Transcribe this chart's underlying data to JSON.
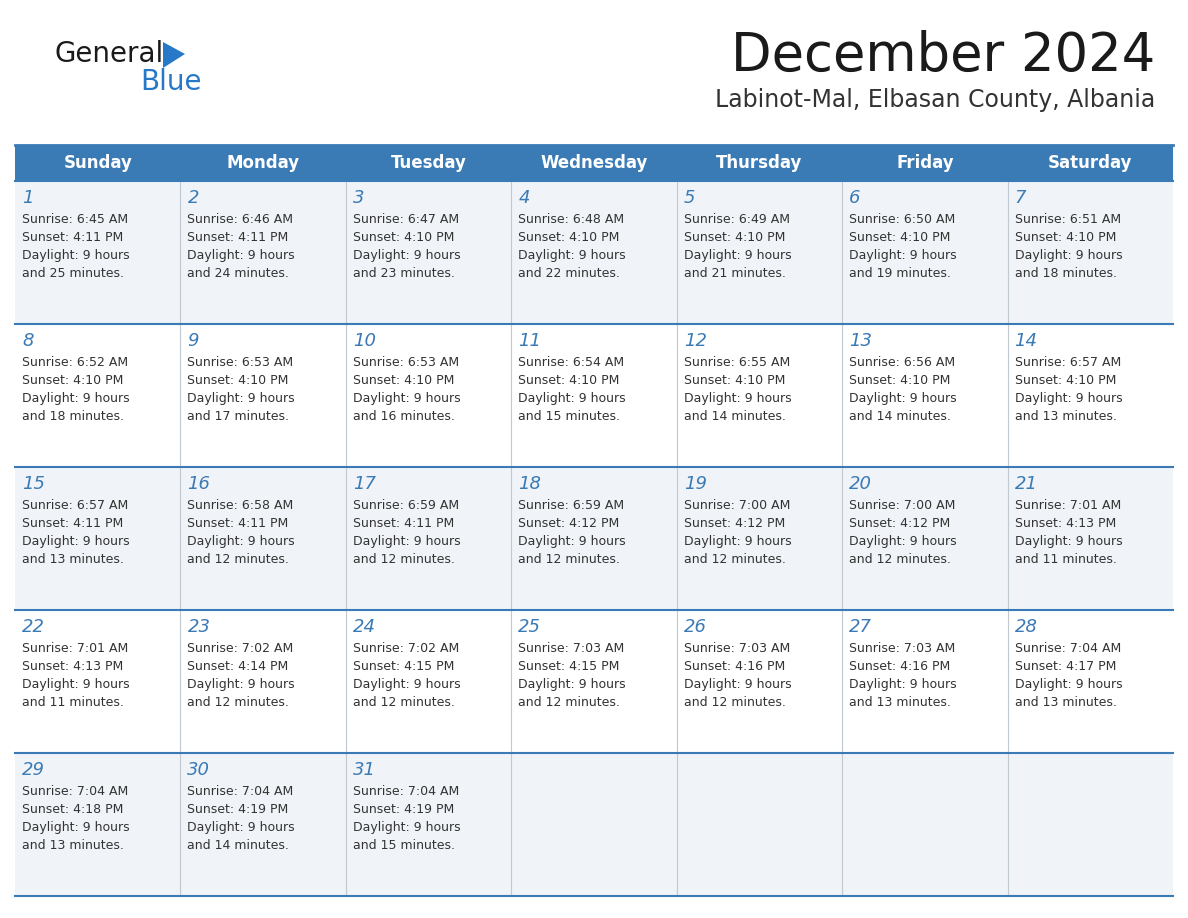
{
  "title": "December 2024",
  "subtitle": "Labinot-Mal, Elbasan County, Albania",
  "header_bg_color": "#3a7ab5",
  "header_text_color": "#ffffff",
  "day_names": [
    "Sunday",
    "Monday",
    "Tuesday",
    "Wednesday",
    "Thursday",
    "Friday",
    "Saturday"
  ],
  "title_color": "#1a1a1a",
  "subtitle_color": "#333333",
  "cell_bg_row0": "#f0f4f8",
  "cell_bg_row1": "#ffffff",
  "day_num_color": "#3a7ab5",
  "text_color": "#333333",
  "border_color": "#3a7ab5",
  "logo_color1": "#1a1a1a",
  "logo_color2": "#2878c8",
  "calendar": [
    [
      {
        "day": 1,
        "sunrise": "6:45 AM",
        "sunset": "4:11 PM",
        "daylight": "9 hours and 25 minutes"
      },
      {
        "day": 2,
        "sunrise": "6:46 AM",
        "sunset": "4:11 PM",
        "daylight": "9 hours and 24 minutes"
      },
      {
        "day": 3,
        "sunrise": "6:47 AM",
        "sunset": "4:10 PM",
        "daylight": "9 hours and 23 minutes"
      },
      {
        "day": 4,
        "sunrise": "6:48 AM",
        "sunset": "4:10 PM",
        "daylight": "9 hours and 22 minutes"
      },
      {
        "day": 5,
        "sunrise": "6:49 AM",
        "sunset": "4:10 PM",
        "daylight": "9 hours and 21 minutes"
      },
      {
        "day": 6,
        "sunrise": "6:50 AM",
        "sunset": "4:10 PM",
        "daylight": "9 hours and 19 minutes"
      },
      {
        "day": 7,
        "sunrise": "6:51 AM",
        "sunset": "4:10 PM",
        "daylight": "9 hours and 18 minutes"
      }
    ],
    [
      {
        "day": 8,
        "sunrise": "6:52 AM",
        "sunset": "4:10 PM",
        "daylight": "9 hours and 18 minutes"
      },
      {
        "day": 9,
        "sunrise": "6:53 AM",
        "sunset": "4:10 PM",
        "daylight": "9 hours and 17 minutes"
      },
      {
        "day": 10,
        "sunrise": "6:53 AM",
        "sunset": "4:10 PM",
        "daylight": "9 hours and 16 minutes"
      },
      {
        "day": 11,
        "sunrise": "6:54 AM",
        "sunset": "4:10 PM",
        "daylight": "9 hours and 15 minutes"
      },
      {
        "day": 12,
        "sunrise": "6:55 AM",
        "sunset": "4:10 PM",
        "daylight": "9 hours and 14 minutes"
      },
      {
        "day": 13,
        "sunrise": "6:56 AM",
        "sunset": "4:10 PM",
        "daylight": "9 hours and 14 minutes"
      },
      {
        "day": 14,
        "sunrise": "6:57 AM",
        "sunset": "4:10 PM",
        "daylight": "9 hours and 13 minutes"
      }
    ],
    [
      {
        "day": 15,
        "sunrise": "6:57 AM",
        "sunset": "4:11 PM",
        "daylight": "9 hours and 13 minutes"
      },
      {
        "day": 16,
        "sunrise": "6:58 AM",
        "sunset": "4:11 PM",
        "daylight": "9 hours and 12 minutes"
      },
      {
        "day": 17,
        "sunrise": "6:59 AM",
        "sunset": "4:11 PM",
        "daylight": "9 hours and 12 minutes"
      },
      {
        "day": 18,
        "sunrise": "6:59 AM",
        "sunset": "4:12 PM",
        "daylight": "9 hours and 12 minutes"
      },
      {
        "day": 19,
        "sunrise": "7:00 AM",
        "sunset": "4:12 PM",
        "daylight": "9 hours and 12 minutes"
      },
      {
        "day": 20,
        "sunrise": "7:00 AM",
        "sunset": "4:12 PM",
        "daylight": "9 hours and 12 minutes"
      },
      {
        "day": 21,
        "sunrise": "7:01 AM",
        "sunset": "4:13 PM",
        "daylight": "9 hours and 11 minutes"
      }
    ],
    [
      {
        "day": 22,
        "sunrise": "7:01 AM",
        "sunset": "4:13 PM",
        "daylight": "9 hours and 11 minutes"
      },
      {
        "day": 23,
        "sunrise": "7:02 AM",
        "sunset": "4:14 PM",
        "daylight": "9 hours and 12 minutes"
      },
      {
        "day": 24,
        "sunrise": "7:02 AM",
        "sunset": "4:15 PM",
        "daylight": "9 hours and 12 minutes"
      },
      {
        "day": 25,
        "sunrise": "7:03 AM",
        "sunset": "4:15 PM",
        "daylight": "9 hours and 12 minutes"
      },
      {
        "day": 26,
        "sunrise": "7:03 AM",
        "sunset": "4:16 PM",
        "daylight": "9 hours and 12 minutes"
      },
      {
        "day": 27,
        "sunrise": "7:03 AM",
        "sunset": "4:16 PM",
        "daylight": "9 hours and 13 minutes"
      },
      {
        "day": 28,
        "sunrise": "7:04 AM",
        "sunset": "4:17 PM",
        "daylight": "9 hours and 13 minutes"
      }
    ],
    [
      {
        "day": 29,
        "sunrise": "7:04 AM",
        "sunset": "4:18 PM",
        "daylight": "9 hours and 13 minutes"
      },
      {
        "day": 30,
        "sunrise": "7:04 AM",
        "sunset": "4:19 PM",
        "daylight": "9 hours and 14 minutes"
      },
      {
        "day": 31,
        "sunrise": "7:04 AM",
        "sunset": "4:19 PM",
        "daylight": "9 hours and 15 minutes"
      },
      null,
      null,
      null,
      null
    ]
  ]
}
